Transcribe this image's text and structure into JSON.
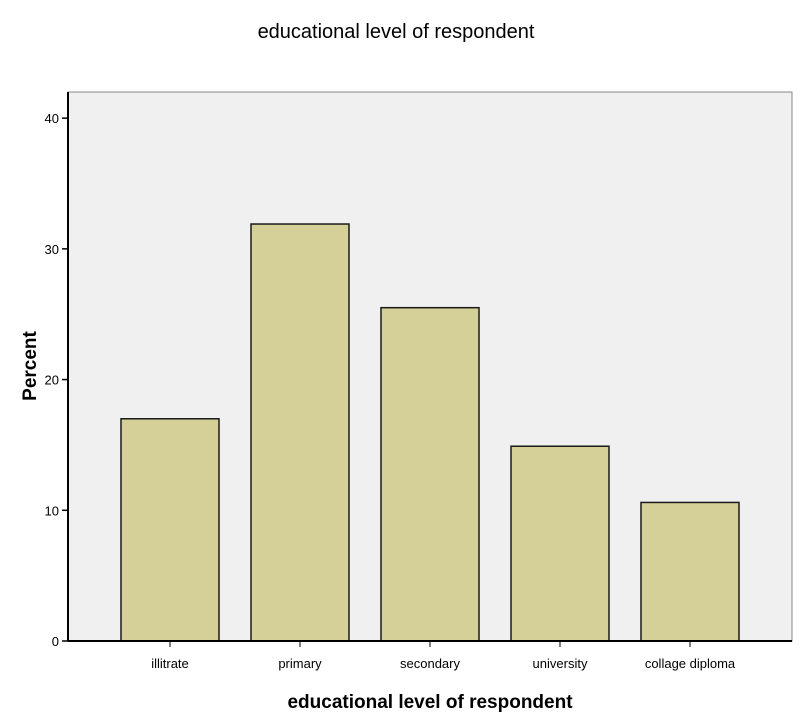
{
  "chart_data": {
    "type": "bar",
    "title": "educational level of respondent",
    "xlabel": "educational level of respondent",
    "ylabel": "Percent",
    "categories": [
      "illitrate",
      "primary",
      "secondary",
      "university",
      "collage diploma"
    ],
    "values": [
      17.0,
      31.9,
      25.5,
      14.9,
      10.6
    ],
    "ylim": [
      0,
      42
    ],
    "yticks": [
      "0",
      "10",
      "20",
      "30",
      "40"
    ],
    "grid": false,
    "legend": "none",
    "colors": {
      "bar_fill": "#d4d098",
      "bar_stroke": "#1a1a1a",
      "plot_background": "#f0f0f0",
      "plot_border": "#888888",
      "axis_line": "#000000"
    }
  }
}
